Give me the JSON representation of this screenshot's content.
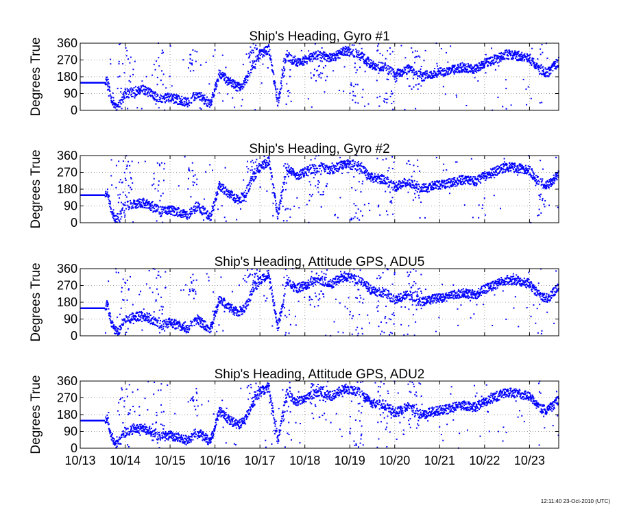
{
  "timestamp": "12:11:40 23-Oct-2010 (UTC)",
  "series_color": "#0000ff",
  "chart_data": [
    {
      "type": "scatter",
      "title": "Ship's Heading, Gyro #1",
      "ylabel": "Degrees True",
      "xlabel": "",
      "ylim": [
        0,
        360
      ],
      "yticks": [
        "0",
        "90",
        "180",
        "270",
        "360"
      ],
      "xlim_days": [
        13.0,
        23.65
      ],
      "xticks": [
        "10/13",
        "10/14",
        "10/15",
        "10/16",
        "10/17",
        "10/18",
        "10/19",
        "10/20",
        "10/21",
        "10/22",
        "10/23"
      ],
      "grid": true,
      "seed": 11
    },
    {
      "type": "scatter",
      "title": "Ship's Heading, Gyro #2",
      "ylabel": "Degrees True",
      "xlabel": "",
      "ylim": [
        0,
        360
      ],
      "yticks": [
        "0",
        "90",
        "180",
        "270",
        "360"
      ],
      "xlim_days": [
        13.0,
        23.65
      ],
      "xticks": [
        "10/13",
        "10/14",
        "10/15",
        "10/16",
        "10/17",
        "10/18",
        "10/19",
        "10/20",
        "10/21",
        "10/22",
        "10/23"
      ],
      "grid": true,
      "seed": 23
    },
    {
      "type": "scatter",
      "title": "Ship's Heading, Attitude GPS, ADU5",
      "ylabel": "Degrees True",
      "xlabel": "",
      "ylim": [
        0,
        360
      ],
      "yticks": [
        "0",
        "90",
        "180",
        "270",
        "360"
      ],
      "xlim_days": [
        13.0,
        23.65
      ],
      "xticks": [
        "10/13",
        "10/14",
        "10/15",
        "10/16",
        "10/17",
        "10/18",
        "10/19",
        "10/20",
        "10/21",
        "10/22",
        "10/23"
      ],
      "grid": true,
      "seed": 37
    },
    {
      "type": "scatter",
      "title": "Ship's Heading, Attitude GPS, ADU2",
      "ylabel": "Degrees True",
      "xlabel": "",
      "ylim": [
        0,
        360
      ],
      "yticks": [
        "0",
        "90",
        "180",
        "270",
        "360"
      ],
      "xlim_days": [
        13.0,
        23.65
      ],
      "xticks": [
        "10/13",
        "10/14",
        "10/15",
        "10/16",
        "10/17",
        "10/18",
        "10/19",
        "10/20",
        "10/21",
        "10/22",
        "10/23"
      ],
      "grid": true,
      "seed": 53
    }
  ],
  "heading_profile": {
    "description_free": true,
    "anchors_day_deg": [
      [
        13.0,
        148
      ],
      [
        13.55,
        148
      ],
      [
        13.6,
        170
      ],
      [
        13.7,
        60
      ],
      [
        13.8,
        20
      ],
      [
        13.9,
        40
      ],
      [
        14.0,
        90
      ],
      [
        14.2,
        100
      ],
      [
        14.4,
        110
      ],
      [
        14.6,
        85
      ],
      [
        14.8,
        60
      ],
      [
        15.0,
        70
      ],
      [
        15.2,
        55
      ],
      [
        15.4,
        40
      ],
      [
        15.6,
        90
      ],
      [
        15.75,
        60
      ],
      [
        15.9,
        35
      ],
      [
        16.1,
        200
      ],
      [
        16.3,
        155
      ],
      [
        16.5,
        125
      ],
      [
        16.65,
        140
      ],
      [
        16.8,
        220
      ],
      [
        17.0,
        300
      ],
      [
        17.2,
        330
      ],
      [
        17.4,
        40
      ],
      [
        17.6,
        300
      ],
      [
        17.8,
        250
      ],
      [
        18.0,
        270
      ],
      [
        18.3,
        300
      ],
      [
        18.6,
        280
      ],
      [
        18.9,
        320
      ],
      [
        19.2,
        300
      ],
      [
        19.5,
        240
      ],
      [
        19.8,
        230
      ],
      [
        20.0,
        190
      ],
      [
        20.3,
        220
      ],
      [
        20.6,
        180
      ],
      [
        20.9,
        200
      ],
      [
        21.2,
        210
      ],
      [
        21.5,
        230
      ],
      [
        21.8,
        220
      ],
      [
        22.0,
        250
      ],
      [
        22.3,
        280
      ],
      [
        22.5,
        300
      ],
      [
        22.8,
        290
      ],
      [
        23.0,
        280
      ],
      [
        23.2,
        220
      ],
      [
        23.4,
        200
      ],
      [
        23.65,
        260
      ]
    ],
    "scatter_bands_deg": [
      [
        13.8,
        14.2,
        0,
        360
      ],
      [
        14.6,
        14.9,
        0,
        360
      ],
      [
        15.4,
        15.6,
        200,
        330
      ],
      [
        16.7,
        17.0,
        250,
        360
      ],
      [
        17.5,
        17.7,
        0,
        360
      ],
      [
        18.1,
        18.5,
        150,
        360
      ],
      [
        19.0,
        19.3,
        0,
        360
      ],
      [
        19.6,
        20.0,
        0,
        360
      ],
      [
        20.3,
        20.6,
        100,
        360
      ],
      [
        23.2,
        23.3,
        0,
        360
      ]
    ]
  }
}
